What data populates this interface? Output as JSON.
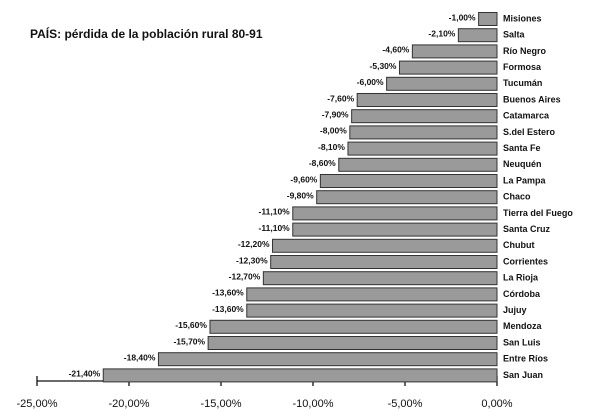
{
  "chart_data": {
    "type": "bar",
    "orientation": "horizontal",
    "title": "PAÍS: pérdida de la población rural 80-91",
    "categories": [
      "Misiones",
      "Salta",
      "Río Negro",
      "Formosa",
      "Tucumán",
      "Buenos Aires",
      "Catamarca",
      "S.del Estero",
      "Santa Fe",
      "Neuquén",
      "La Pampa",
      "Chaco",
      "Tierra del Fuego",
      "Santa Cruz",
      "Chubut",
      "Corrientes",
      "La Rioja",
      "Córdoba",
      "Jujuy",
      "Mendoza",
      "San Luis",
      "Entre Ríos",
      "San Juan"
    ],
    "values": [
      -1.0,
      -2.1,
      -4.6,
      -5.3,
      -6.0,
      -7.6,
      -7.9,
      -8.0,
      -8.1,
      -8.6,
      -9.6,
      -9.8,
      -11.1,
      -11.1,
      -12.2,
      -12.3,
      -12.7,
      -13.6,
      -13.6,
      -15.6,
      -15.7,
      -18.4,
      -21.4
    ],
    "value_labels": [
      "-1,00%",
      "-2,10%",
      "-4,60%",
      "-5,30%",
      "-6,00%",
      "-7,60%",
      "-7,90%",
      "-8,00%",
      "-8,10%",
      "-8,60%",
      "-9,60%",
      "-9,80%",
      "-11,10%",
      "-11,10%",
      "-12,20%",
      "-12,30%",
      "-12,70%",
      "-13,60%",
      "-13,60%",
      "-15,60%",
      "-15,70%",
      "-18,40%",
      "-21,40%"
    ],
    "color": "#9a9a9a",
    "xlim": [
      -25,
      0
    ],
    "xticks": [
      {
        "value": -25,
        "label": "-25,00%"
      },
      {
        "value": -20,
        "label": "-20,00%"
      },
      {
        "value": -15,
        "label": "-15,00%"
      },
      {
        "value": -10,
        "label": "-10,00%"
      },
      {
        "value": -5,
        "label": "-5,00%"
      },
      {
        "value": 0,
        "label": "0,00%"
      }
    ],
    "grid": false
  }
}
